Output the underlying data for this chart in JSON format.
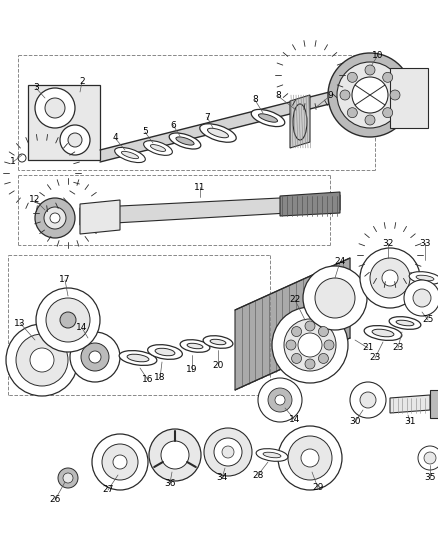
{
  "bg_color": "#ffffff",
  "fig_width": 4.38,
  "fig_height": 5.33,
  "dpi": 100,
  "lc": "#2a2a2a",
  "fs": 6.5,
  "gray_light": "#e8e8e8",
  "gray_mid": "#bbbbbb",
  "gray_dark": "#888888"
}
